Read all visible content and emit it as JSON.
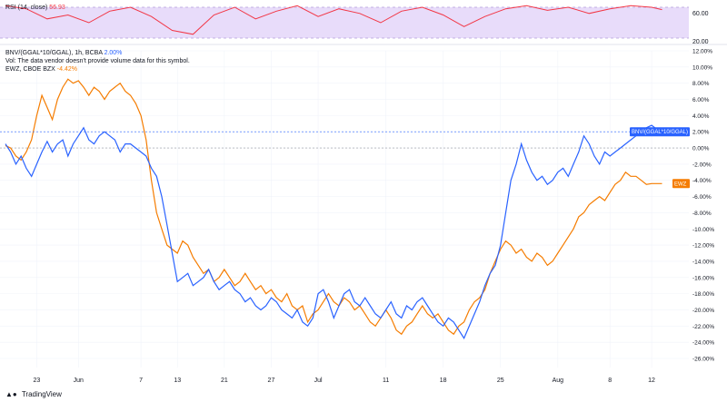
{
  "rsi_panel": {
    "label": "RSI (14, close)",
    "value": "56.93",
    "levels": [
      "60.00",
      "20.00"
    ]
  },
  "legend": {
    "main_symbol": "BNV/(GGAL*10/GGAL), 1h, BCBA",
    "main_value": "2.00%",
    "volume_note": "Vol: The data vendor doesn't provide volume data for this symbol.",
    "compare_symbol": "EWZ, CBOE BZX",
    "compare_value": "-4.42%"
  },
  "price_tags": {
    "main": "BNV/(GGAL*10/GGAL)",
    "compare": "EWZ"
  },
  "watermark": "TradingView",
  "colors": {
    "main": "#2962ff",
    "compare": "#f57c00",
    "rsi": "#f23645",
    "rsi_band": "#e8dcfa"
  },
  "chart_data": {
    "type": "line",
    "y_unit": "%",
    "ylim": [
      -26,
      12
    ],
    "y_ticks": [
      "12.00%",
      "10.00%",
      "8.00%",
      "6.00%",
      "4.00%",
      "2.00%",
      "0.00%",
      "-2.00%",
      "-4.00%",
      "-6.00%",
      "-8.00%",
      "-10.00%",
      "-12.00%",
      "-14.00%",
      "-16.00%",
      "-18.00%",
      "-20.00%",
      "-22.00%",
      "-24.00%",
      "-26.00%"
    ],
    "y_tick_values": [
      12,
      10,
      8,
      6,
      4,
      2,
      0,
      -2,
      -4,
      -6,
      -8,
      -10,
      -12,
      -14,
      -16,
      -18,
      -20,
      -22,
      -24,
      -26
    ],
    "x_labels": [
      "23",
      "Jun",
      "7",
      "13",
      "21",
      "27",
      "Jul",
      "11",
      "18",
      "25",
      "Aug",
      "8",
      "12"
    ],
    "x_label_positions": [
      6,
      14,
      26,
      33,
      42,
      51,
      60,
      73,
      84,
      95,
      106,
      116,
      124
    ],
    "x_range": [
      0,
      128
    ],
    "series": [
      {
        "name": "BNV/(GGAL*10/GGAL)",
        "x": [
          0,
          1,
          2,
          3,
          4,
          5,
          6,
          7,
          8,
          9,
          10,
          11,
          12,
          13,
          14,
          15,
          16,
          17,
          18,
          19,
          20,
          21,
          22,
          23,
          24,
          25,
          26,
          27,
          28,
          29,
          30,
          31,
          32,
          33,
          34,
          35,
          36,
          37,
          38,
          39,
          40,
          41,
          42,
          43,
          44,
          45,
          46,
          47,
          48,
          49,
          50,
          51,
          52,
          53,
          54,
          55,
          56,
          57,
          58,
          59,
          60,
          61,
          62,
          63,
          64,
          65,
          66,
          67,
          68,
          69,
          70,
          71,
          72,
          73,
          74,
          75,
          76,
          77,
          78,
          79,
          80,
          81,
          82,
          83,
          84,
          85,
          86,
          87,
          88,
          89,
          90,
          91,
          92,
          93,
          94,
          95,
          96,
          97,
          98,
          99,
          100,
          101,
          102,
          103,
          104,
          105,
          106,
          107,
          108,
          109,
          110,
          111,
          112,
          113,
          114,
          115,
          116,
          117,
          118,
          119,
          120,
          121,
          122,
          123,
          124,
          125,
          126
        ],
        "y": [
          0.5,
          -0.5,
          -2.0,
          -1.0,
          -2.5,
          -3.5,
          -2.0,
          -0.5,
          0.8,
          -0.5,
          0.5,
          1.0,
          -1.0,
          0.5,
          1.5,
          2.5,
          1.0,
          0.5,
          1.5,
          2.0,
          1.5,
          1.0,
          -0.5,
          0.5,
          0.5,
          0.0,
          -0.5,
          -1.0,
          -2.5,
          -3.5,
          -6.0,
          -9.5,
          -13.0,
          -16.5,
          -16.0,
          -15.5,
          -17.0,
          -16.5,
          -16.0,
          -15.0,
          -16.5,
          -17.5,
          -17.0,
          -16.5,
          -17.5,
          -18.0,
          -19.0,
          -18.5,
          -19.5,
          -20.0,
          -19.5,
          -18.5,
          -19.0,
          -20.0,
          -20.5,
          -21.0,
          -20.0,
          -21.5,
          -22.0,
          -21.0,
          -18.0,
          -17.5,
          -19.0,
          -21.0,
          -19.5,
          -18.0,
          -17.5,
          -19.0,
          -19.5,
          -18.5,
          -19.5,
          -20.5,
          -21.0,
          -20.0,
          -19.0,
          -20.5,
          -21.0,
          -19.5,
          -20.0,
          -19.0,
          -18.5,
          -19.5,
          -20.5,
          -21.5,
          -22.0,
          -21.0,
          -21.5,
          -22.5,
          -23.5,
          -22.0,
          -20.5,
          -19.0,
          -17.0,
          -15.5,
          -14.5,
          -12.0,
          -8.0,
          -4.0,
          -2.0,
          0.5,
          -1.5,
          -3.0,
          -4.0,
          -3.5,
          -4.5,
          -4.0,
          -3.0,
          -2.5,
          -3.5,
          -2.0,
          -0.5,
          1.5,
          0.5,
          -1.0,
          -2.0,
          -0.5,
          -1.0,
          -0.5,
          0.0,
          0.5,
          1.0,
          1.5,
          2.0,
          2.5,
          2.8,
          2.3,
          2.0
        ]
      },
      {
        "name": "EWZ, CBOE BZX",
        "x": [
          0,
          1,
          2,
          3,
          4,
          5,
          6,
          7,
          8,
          9,
          10,
          11,
          12,
          13,
          14,
          15,
          16,
          17,
          18,
          19,
          20,
          21,
          22,
          23,
          24,
          25,
          26,
          27,
          28,
          29,
          30,
          31,
          32,
          33,
          34,
          35,
          36,
          37,
          38,
          39,
          40,
          41,
          42,
          43,
          44,
          45,
          46,
          47,
          48,
          49,
          50,
          51,
          52,
          53,
          54,
          55,
          56,
          57,
          58,
          59,
          60,
          61,
          62,
          63,
          64,
          65,
          66,
          67,
          68,
          69,
          70,
          71,
          72,
          73,
          74,
          75,
          76,
          77,
          78,
          79,
          80,
          81,
          82,
          83,
          84,
          85,
          86,
          87,
          88,
          89,
          90,
          91,
          92,
          93,
          94,
          95,
          96,
          97,
          98,
          99,
          100,
          101,
          102,
          103,
          104,
          105,
          106,
          107,
          108,
          109,
          110,
          111,
          112,
          113,
          114,
          115,
          116,
          117,
          118,
          119,
          120,
          121,
          122,
          123,
          124,
          125,
          126
        ],
        "y": [
          0.3,
          0.0,
          -1.0,
          -1.5,
          -0.5,
          1.0,
          4.0,
          6.5,
          5.0,
          3.5,
          6.0,
          7.5,
          8.5,
          8.0,
          8.3,
          7.5,
          6.5,
          7.5,
          7.0,
          6.0,
          7.0,
          7.5,
          8.0,
          7.0,
          6.5,
          5.5,
          4.0,
          1.0,
          -4.0,
          -8.0,
          -10.0,
          -12.0,
          -12.5,
          -13.0,
          -11.5,
          -12.0,
          -13.5,
          -14.5,
          -15.5,
          -15.0,
          -16.5,
          -16.0,
          -15.0,
          -16.0,
          -17.0,
          -16.5,
          -15.5,
          -16.5,
          -17.5,
          -17.0,
          -18.0,
          -17.5,
          -18.5,
          -19.0,
          -18.0,
          -19.5,
          -20.0,
          -19.5,
          -21.5,
          -20.5,
          -20.0,
          -19.0,
          -18.0,
          -19.0,
          -19.5,
          -18.5,
          -19.0,
          -20.0,
          -19.5,
          -20.5,
          -21.5,
          -22.0,
          -21.0,
          -20.0,
          -21.0,
          -22.5,
          -23.0,
          -22.0,
          -21.5,
          -20.5,
          -19.5,
          -20.5,
          -21.0,
          -20.5,
          -21.5,
          -22.5,
          -23.0,
          -22.0,
          -21.5,
          -20.0,
          -19.0,
          -18.5,
          -17.5,
          -15.5,
          -14.0,
          -12.5,
          -11.5,
          -12.0,
          -13.0,
          -12.5,
          -13.5,
          -14.0,
          -13.0,
          -13.5,
          -14.5,
          -14.0,
          -13.0,
          -12.0,
          -11.0,
          -10.0,
          -8.5,
          -8.0,
          -7.0,
          -6.5,
          -6.0,
          -6.5,
          -5.5,
          -4.5,
          -4.0,
          -3.0,
          -3.5,
          -3.5,
          -4.0,
          -4.5,
          -4.4,
          -4.4,
          -4.4
        ]
      }
    ],
    "rsi_series": {
      "name": "RSI (14, close)",
      "x": [
        0,
        4,
        8,
        12,
        16,
        20,
        24,
        28,
        32,
        36,
        40,
        44,
        48,
        52,
        56,
        60,
        64,
        68,
        72,
        76,
        80,
        84,
        88,
        92,
        96,
        100,
        104,
        108,
        112,
        116,
        120,
        124,
        126
      ],
      "y": [
        62,
        58,
        45,
        50,
        40,
        55,
        60,
        48,
        30,
        25,
        50,
        60,
        45,
        55,
        62,
        48,
        58,
        52,
        40,
        55,
        60,
        50,
        35,
        48,
        58,
        62,
        56,
        60,
        52,
        58,
        62,
        60,
        57
      ]
    }
  }
}
